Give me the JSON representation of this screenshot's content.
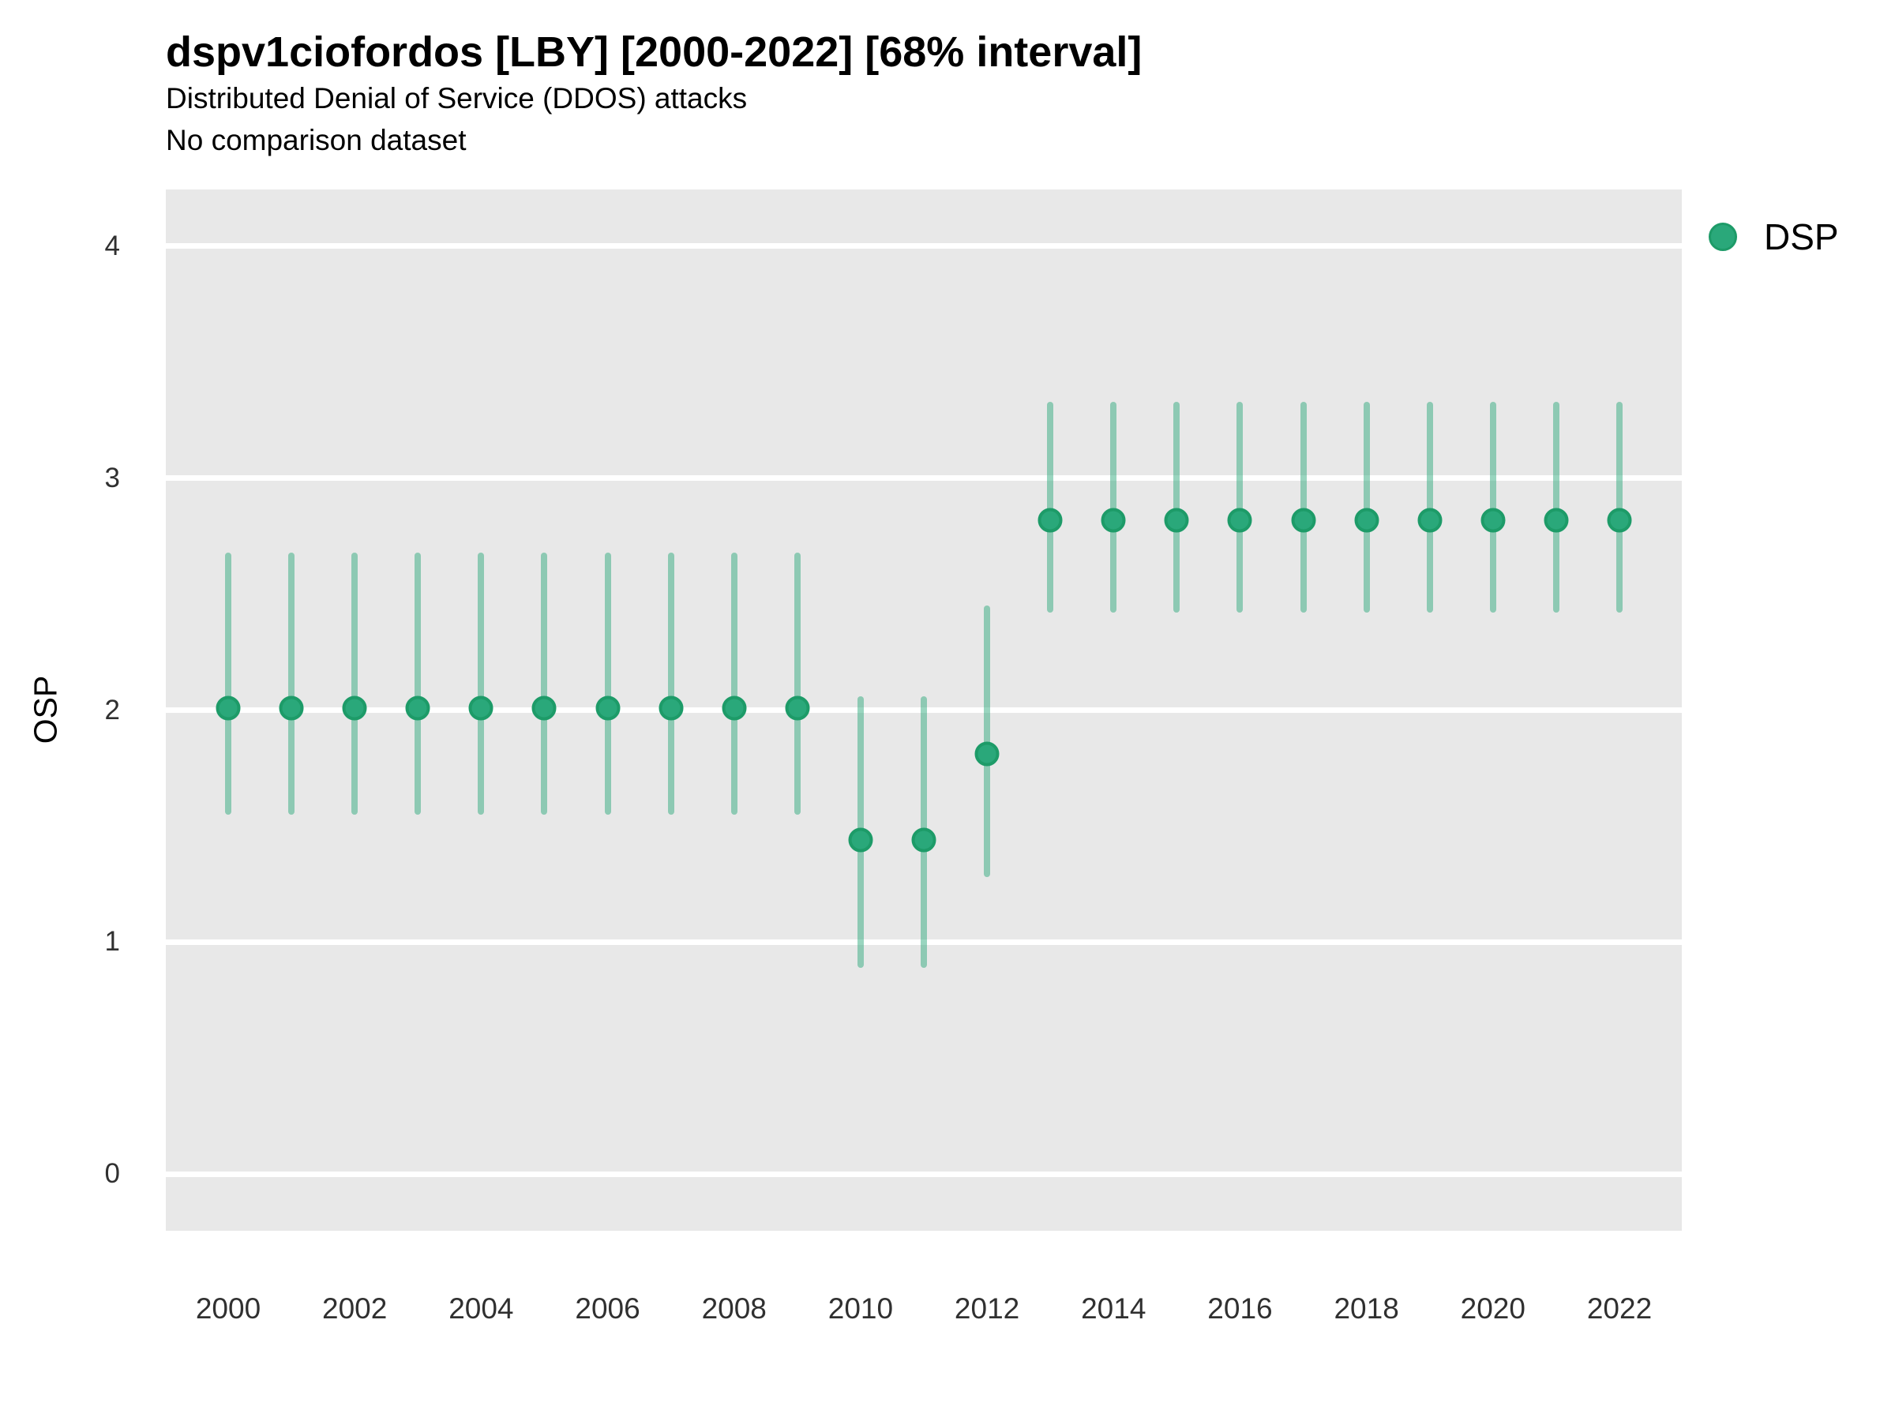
{
  "chart_data": {
    "type": "scatter",
    "variant": "pointrange",
    "title": "dspv1ciofordos [LBY] [2000-2022] [68% interval]",
    "subtitle": "Distributed Denial of Service (DDOS) attacks",
    "note": "No comparison dataset",
    "xlabel": "",
    "ylabel": "OSP",
    "x": [
      2000,
      2001,
      2002,
      2003,
      2004,
      2005,
      2006,
      2007,
      2008,
      2009,
      2010,
      2011,
      2012,
      2013,
      2014,
      2015,
      2016,
      2017,
      2018,
      2019,
      2020,
      2021,
      2022
    ],
    "series": [
      {
        "name": "DSP",
        "values": [
          2.01,
          2.01,
          2.01,
          2.01,
          2.01,
          2.01,
          2.01,
          2.01,
          2.01,
          2.01,
          1.44,
          1.44,
          1.81,
          2.82,
          2.82,
          2.82,
          2.82,
          2.82,
          2.82,
          2.82,
          2.82,
          2.82,
          2.82
        ],
        "lower_68": [
          1.55,
          1.55,
          1.55,
          1.55,
          1.55,
          1.55,
          1.55,
          1.55,
          1.55,
          1.55,
          0.89,
          0.89,
          1.28,
          2.42,
          2.42,
          2.42,
          2.42,
          2.42,
          2.42,
          2.42,
          2.42,
          2.42,
          2.42
        ],
        "upper_68": [
          2.68,
          2.68,
          2.68,
          2.68,
          2.68,
          2.68,
          2.68,
          2.68,
          2.68,
          2.68,
          2.06,
          2.06,
          2.45,
          3.33,
          3.33,
          3.33,
          3.33,
          3.33,
          3.33,
          3.33,
          3.33,
          3.33,
          3.33
        ]
      }
    ],
    "xticks": [
      2000,
      2002,
      2004,
      2006,
      2008,
      2010,
      2012,
      2014,
      2016,
      2018,
      2020,
      2022
    ],
    "yticks": [
      0,
      1,
      2,
      3,
      4
    ],
    "ylim": [
      -0.245,
      4.245
    ],
    "grid": "horizontal-major-only",
    "legend_position": "right",
    "colors": {
      "point_fill": "#2aa87a",
      "point_stroke": "#1d9b68",
      "interval": "rgba(42,168,122,0.48)",
      "panel_bg": "#e8e8e8",
      "gridline": "#ffffff"
    }
  }
}
